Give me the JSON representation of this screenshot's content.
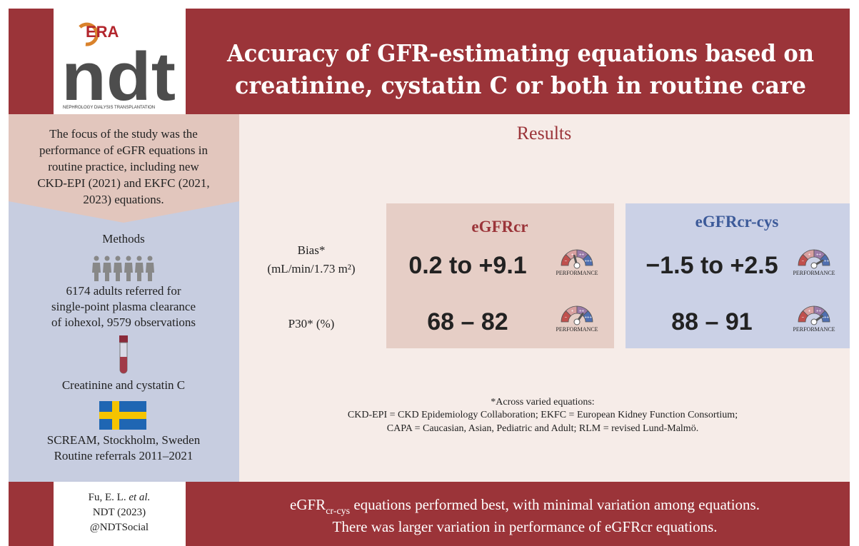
{
  "header": {
    "logo": {
      "era": "ERA",
      "ndt": "ndt",
      "tagline": "NEPHROLOGY DIALYSIS TRANSPLANTATION"
    },
    "title": [
      "Accuracy of GFR-estimating equations based on",
      "creatinine, cystatin C or both in routine care"
    ]
  },
  "sidebar": {
    "focus": [
      "The focus of the study was the",
      "performance of eGFR equations in",
      "routine practice, including new",
      "CKD-EPI (2021) and EKFC (2021,",
      "2023) equations."
    ],
    "methods": {
      "heading": "Methods",
      "population": [
        "6174 adults referred for",
        "single-point plasma clearance",
        "of iohexol, 9579 observations"
      ],
      "measures": "Creatinine and cystatin C",
      "setting": [
        "SCREAM, Stockholm, Sweden",
        "Routine referrals 2011–2021"
      ]
    }
  },
  "results": {
    "heading": "Results",
    "rows": [
      {
        "label": [
          "Bias*",
          "(mL/min/1.73 m²)"
        ]
      },
      {
        "label": [
          "P30* (%)"
        ]
      }
    ],
    "columns": [
      {
        "name": "eGFRcr",
        "values": [
          "0.2 to +9.1",
          "68 – 82"
        ]
      },
      {
        "name": "eGFRcr-cys",
        "values": [
          "−1.5 to +2.5",
          "88 – 91"
        ]
      }
    ],
    "gauge_label": "PERFORMANCE",
    "gauge_scale": [
      "−",
      "+",
      "++",
      "+++"
    ],
    "footnote": [
      "*Across varied equations:",
      "CKD-EPI = CKD Epidemiology Collaboration; EKFC = European Kidney Function Consortium;",
      "CAPA = Caucasian, Asian, Pediatric and Adult; RLM = revised Lund-Malmö."
    ]
  },
  "footer": {
    "citation": [
      "Fu, E. L.",
      "et al.",
      "NDT (2023)",
      "@NDTSocial"
    ],
    "conclusion": {
      "prefix": "eGFR",
      "subscript": "cr-cys",
      "rest": " equations performed best, with minimal variation among equations.",
      "line2": "There was larger variation in performance of eGFRcr equations."
    }
  }
}
